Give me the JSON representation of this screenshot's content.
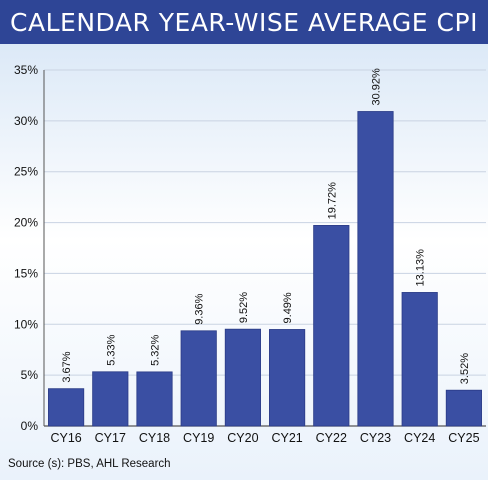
{
  "header": {
    "title": "CALENDAR YEAR-WISE AVERAGE CPI"
  },
  "source": "Source (s): PBS, AHL Research",
  "colors": {
    "bar": "#3a4fa3",
    "header": "#2e4596",
    "grid": "#c9d3e2"
  },
  "chart_data": {
    "type": "bar",
    "title": "CALENDAR YEAR-WISE AVERAGE CPI",
    "categories": [
      "CY16",
      "CY17",
      "CY18",
      "CY19",
      "CY20",
      "CY21",
      "CY22",
      "CY23",
      "CY24",
      "CY25"
    ],
    "values": [
      3.67,
      5.33,
      5.32,
      9.36,
      9.52,
      9.49,
      19.72,
      30.92,
      13.13,
      3.52
    ],
    "data_labels": [
      "3.67%",
      "5.33%",
      "5.32%",
      "9.36%",
      "9.52%",
      "9.49%",
      "19.72%",
      "30.92%",
      "13.13%",
      "3.52%"
    ],
    "ylim": [
      0,
      35
    ],
    "yticks": [
      0,
      5,
      10,
      15,
      20,
      25,
      30,
      35
    ],
    "ytick_labels": [
      "0%",
      "5%",
      "10%",
      "15%",
      "20%",
      "25%",
      "30%",
      "35%"
    ],
    "xlabel": "",
    "ylabel": "",
    "grid": true,
    "legend": "none"
  }
}
